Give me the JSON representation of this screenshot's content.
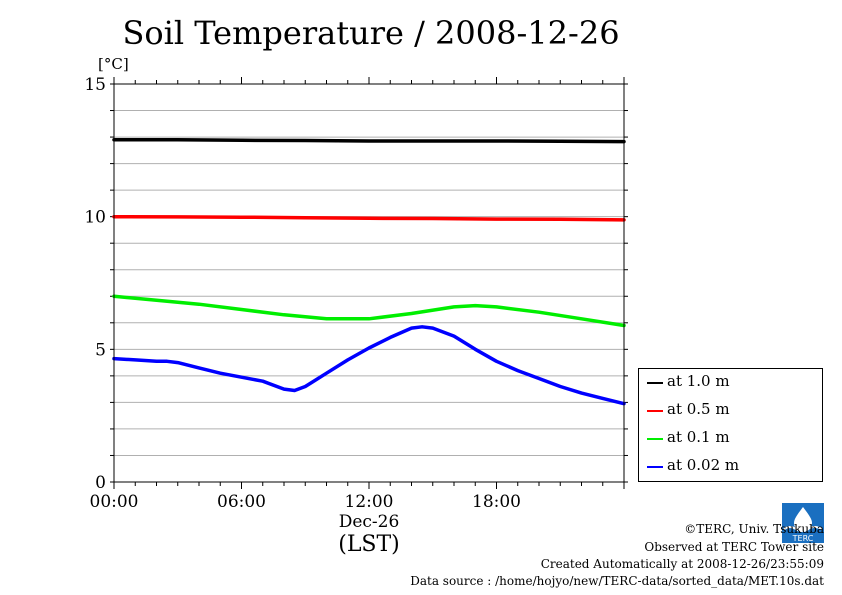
{
  "chart_data": {
    "type": "line",
    "title": "Soil Temperature / 2008-12-26",
    "ylabel": "[°C]",
    "xlabel": "(LST)",
    "date_label": "Dec-26",
    "xlim": [
      0,
      24
    ],
    "ylim": [
      0,
      15
    ],
    "yticks": [
      "0",
      "5",
      "10",
      "15"
    ],
    "xticks": [
      {
        "value": 0,
        "label": "00:00"
      },
      {
        "value": 6,
        "label": "06:00"
      },
      {
        "value": 12,
        "label": "12:00"
      },
      {
        "value": 18,
        "label": "18:00"
      }
    ],
    "grid": true,
    "legend_position": "bottom-right, outside plot",
    "series": [
      {
        "name": "at 1.0 m",
        "color": "#000000",
        "x": [
          0,
          3,
          6,
          9,
          12,
          15,
          18,
          21,
          24
        ],
        "y": [
          12.9,
          12.9,
          12.88,
          12.87,
          12.85,
          12.85,
          12.85,
          12.84,
          12.83
        ]
      },
      {
        "name": "at 0.5 m",
        "color": "#ff0000",
        "x": [
          0,
          3,
          6,
          9,
          12,
          15,
          18,
          21,
          24
        ],
        "y": [
          10.0,
          9.99,
          9.98,
          9.96,
          9.94,
          9.93,
          9.91,
          9.9,
          9.88
        ]
      },
      {
        "name": "at 0.1 m",
        "color": "#00ee00",
        "x": [
          0,
          2,
          4,
          6,
          8,
          10,
          12,
          14,
          16,
          17,
          18,
          20,
          22,
          24
        ],
        "y": [
          7.0,
          6.85,
          6.7,
          6.5,
          6.3,
          6.15,
          6.15,
          6.35,
          6.6,
          6.65,
          6.6,
          6.4,
          6.15,
          5.9
        ]
      },
      {
        "name": "at 0.02 m",
        "color": "#0000ff",
        "x": [
          0,
          1,
          2,
          2.5,
          3,
          4,
          5,
          6,
          7,
          8,
          8.5,
          9,
          10,
          11,
          12,
          13,
          14,
          14.5,
          15,
          16,
          17,
          18,
          19,
          20,
          21,
          22,
          23,
          24
        ],
        "y": [
          4.65,
          4.6,
          4.55,
          4.55,
          4.5,
          4.3,
          4.1,
          3.95,
          3.8,
          3.5,
          3.45,
          3.6,
          4.1,
          4.6,
          5.05,
          5.45,
          5.8,
          5.85,
          5.8,
          5.5,
          5.0,
          4.55,
          4.2,
          3.9,
          3.6,
          3.35,
          3.15,
          2.95
        ]
      }
    ]
  },
  "legend": [
    {
      "label": "at 1.0 m",
      "color": "#000000"
    },
    {
      "label": "at 0.5 m",
      "color": "#ff0000"
    },
    {
      "label": "at 0.1 m",
      "color": "#00ee00"
    },
    {
      "label": "at 0.02 m",
      "color": "#0000ff"
    }
  ],
  "credits": {
    "copyright": "©TERC, Univ. Tsukuba",
    "observed": "Observed at TERC Tower site",
    "created": "Created Automatically at 2008-12-26/23:55:09",
    "source": "Data source : /home/hojyo/new/TERC-data/sorted_data/MET.10s.dat",
    "logo_text": "TERC"
  }
}
